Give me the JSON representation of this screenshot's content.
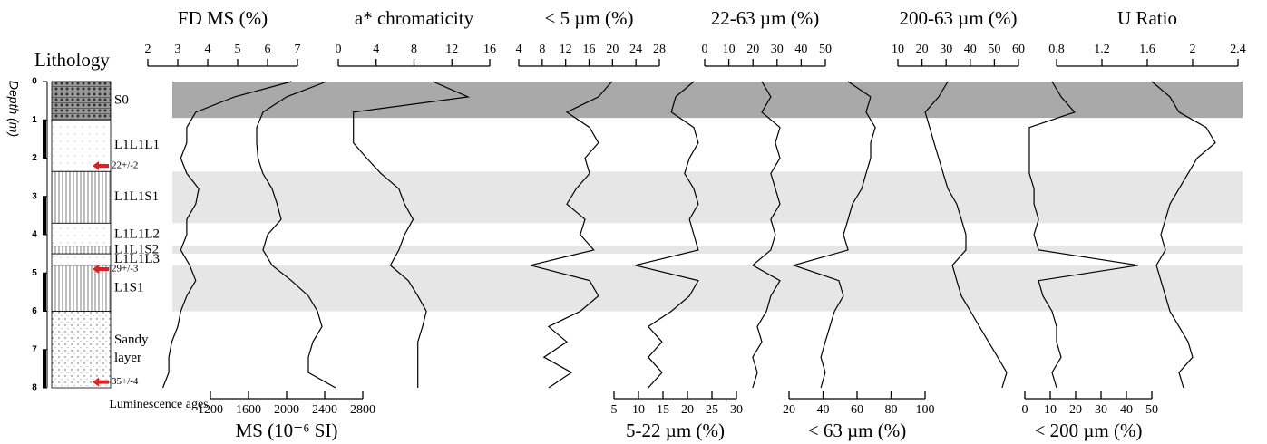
{
  "chart_data": {
    "type": "depth-profile",
    "title": "Lithology",
    "ylabel": "Depth (m)",
    "ylim": [
      0,
      8
    ],
    "yticks": [
      0,
      1,
      2,
      3,
      4,
      5,
      6,
      7,
      8
    ],
    "depths": [
      0,
      0.4,
      0.8,
      1.2,
      1.6,
      2.0,
      2.4,
      2.8,
      3.2,
      3.6,
      4.0,
      4.4,
      4.8,
      5.2,
      5.6,
      6.0,
      6.4,
      6.8,
      7.2,
      7.6,
      8.0
    ],
    "bands": [
      {
        "from": 0,
        "to": 0.95,
        "color": "#a9a9a9"
      },
      {
        "from": 2.35,
        "to": 3.7,
        "color": "#e6e6e6"
      },
      {
        "from": 4.3,
        "to": 4.5,
        "color": "#e6e6e6"
      },
      {
        "from": 4.8,
        "to": 6.0,
        "color": "#e6e6e6"
      }
    ],
    "units": [
      {
        "label": "S0",
        "top": 0,
        "bottom": 1
      },
      {
        "label": "L1L1L1",
        "top": 1,
        "bottom": 2.35
      },
      {
        "label": "L1L1S1",
        "top": 2.35,
        "bottom": 3.7
      },
      {
        "label": "L1L1L2",
        "top": 3.7,
        "bottom": 4.3
      },
      {
        "label": "L1L1S2",
        "top": 4.3,
        "bottom": 4.5
      },
      {
        "label": "L1L1L3",
        "top": 4.5,
        "bottom": 4.8
      },
      {
        "label": "L1S1",
        "top": 4.8,
        "bottom": 6.0
      },
      {
        "label": "Sandy layer",
        "top": 6.0,
        "bottom": 8.0
      }
    ],
    "ages_title": "Luminescence ages",
    "ages": [
      {
        "depth": 2.2,
        "label": "22+/-2"
      },
      {
        "depth": 4.9,
        "label": "29+/-3"
      },
      {
        "depth": 7.85,
        "label": "35+/-4"
      }
    ],
    "panels": [
      {
        "label": "FD MS (%)",
        "axis": "top",
        "xlim": [
          2,
          7
        ],
        "xticks": [
          2,
          3,
          4,
          5,
          6,
          7
        ],
        "values": [
          6.8,
          4.9,
          3.6,
          3.3,
          3.3,
          3.1,
          3.3,
          3.7,
          3.6,
          3.3,
          3.3,
          3.1,
          3.4,
          3.6,
          3.3,
          3.1,
          3.0,
          2.8,
          2.7,
          2.7,
          2.5
        ]
      },
      {
        "label": "a* chromaticity",
        "axis": "top",
        "xlim": [
          0,
          16
        ],
        "xticks": [
          0,
          4,
          8,
          12,
          16
        ],
        "values": [
          10,
          13.7,
          1.6,
          1.6,
          1.6,
          3,
          4.5,
          6.4,
          7,
          7.9,
          7,
          6.4,
          5.5,
          7.4,
          8.4,
          9.3,
          8.9,
          8.4,
          8.4,
          8.4,
          8.4
        ]
      },
      {
        "label": "< 5 µm (%)",
        "axis": "top",
        "xlim": [
          4,
          28
        ],
        "xticks": [
          4,
          8,
          12,
          16,
          20,
          24,
          28
        ],
        "values": [
          19.9,
          17.6,
          12.2,
          16.1,
          17.6,
          15.3,
          16.1,
          13.8,
          12.2,
          15.3,
          14.5,
          16.8,
          6.0,
          16.1,
          17.6,
          14.5,
          9.1,
          12.2,
          8.3,
          13.0,
          9.1
        ]
      },
      {
        "label": "22-63 µm (%)",
        "axis": "top",
        "xlim": [
          0,
          50
        ],
        "xticks": [
          0,
          10,
          20,
          30,
          40,
          50
        ],
        "values": [
          23.7,
          27.4,
          23.7,
          31.2,
          29.3,
          31.2,
          27.4,
          29.3,
          31.2,
          27.4,
          29.3,
          27.4,
          19.9,
          31.2,
          27.4,
          25.6,
          21.8,
          23.7,
          19.9,
          21.8,
          19.9
        ]
      },
      {
        "label": "200-63 µm (%)",
        "axis": "top",
        "xlim": [
          10,
          60
        ],
        "xticks": [
          10,
          20,
          30,
          40,
          50,
          60
        ],
        "values": [
          30.7,
          26.9,
          21.3,
          23.2,
          25.0,
          26.9,
          28.8,
          30.7,
          34.4,
          36.3,
          38.2,
          38.2,
          32.6,
          34.4,
          36.3,
          40.1,
          43.8,
          47.6,
          51.4,
          55.1,
          53.2
        ]
      },
      {
        "label": "U Ratio",
        "axis": "top",
        "xlim": [
          0.8,
          2.4
        ],
        "xticks": [
          0.8,
          1.2,
          1.6,
          2,
          2.4
        ],
        "values": [
          1.64,
          1.8,
          1.88,
          2.12,
          2.2,
          2.04,
          1.96,
          1.88,
          1.8,
          1.76,
          1.72,
          1.76,
          1.68,
          1.72,
          1.76,
          1.8,
          1.88,
          1.96,
          2.0,
          1.88,
          1.92
        ]
      },
      {
        "label": "MS (10⁻⁶ SI)",
        "axis": "bottom",
        "xlim": [
          1200,
          2800
        ],
        "xticks": [
          1200,
          1600,
          2000,
          2400,
          2800
        ],
        "values": [
          2419,
          2000,
          1752,
          1686,
          1686,
          1700,
          1750,
          1848,
          1900,
          1943,
          1800,
          1752,
          1848,
          2050,
          2229,
          2324,
          2371,
          2276,
          2229,
          2229,
          2514
        ]
      },
      {
        "label": "5-22 µm (%)",
        "axis": "bottom",
        "xlim": [
          5,
          30
        ],
        "xticks": [
          5,
          10,
          15,
          20,
          25,
          30
        ],
        "values": [
          21.3,
          17.6,
          16.7,
          21.3,
          22.2,
          20.4,
          19.4,
          21.3,
          22.2,
          20.4,
          21.3,
          22.2,
          9.3,
          22.2,
          20.4,
          16.7,
          12.0,
          14.8,
          12.0,
          14.8,
          12.0
        ]
      },
      {
        "label": "< 63 µm (%)",
        "axis": "bottom",
        "xlim": [
          20,
          100
        ],
        "xticks": [
          20,
          40,
          60,
          80,
          100
        ],
        "values": [
          54.7,
          68,
          65.3,
          70.7,
          68,
          68,
          65.3,
          62.7,
          57.3,
          54.7,
          52,
          54.7,
          22.7,
          49.3,
          52,
          46.7,
          44,
          41.3,
          38.7,
          41.3,
          38.7
        ]
      },
      {
        "label": "< 200 µm (%)",
        "axis": "bottom",
        "xlim": [
          0,
          50
        ],
        "xticks": [
          0,
          10,
          20,
          30,
          40,
          50
        ],
        "values": [
          10.7,
          14.3,
          19.6,
          1.8,
          1.8,
          1.8,
          1.8,
          3.6,
          3.6,
          5.4,
          3.6,
          5.4,
          44.6,
          5.4,
          7.1,
          10.7,
          12.5,
          12.5,
          14.3,
          10.7,
          12.5
        ]
      }
    ]
  }
}
